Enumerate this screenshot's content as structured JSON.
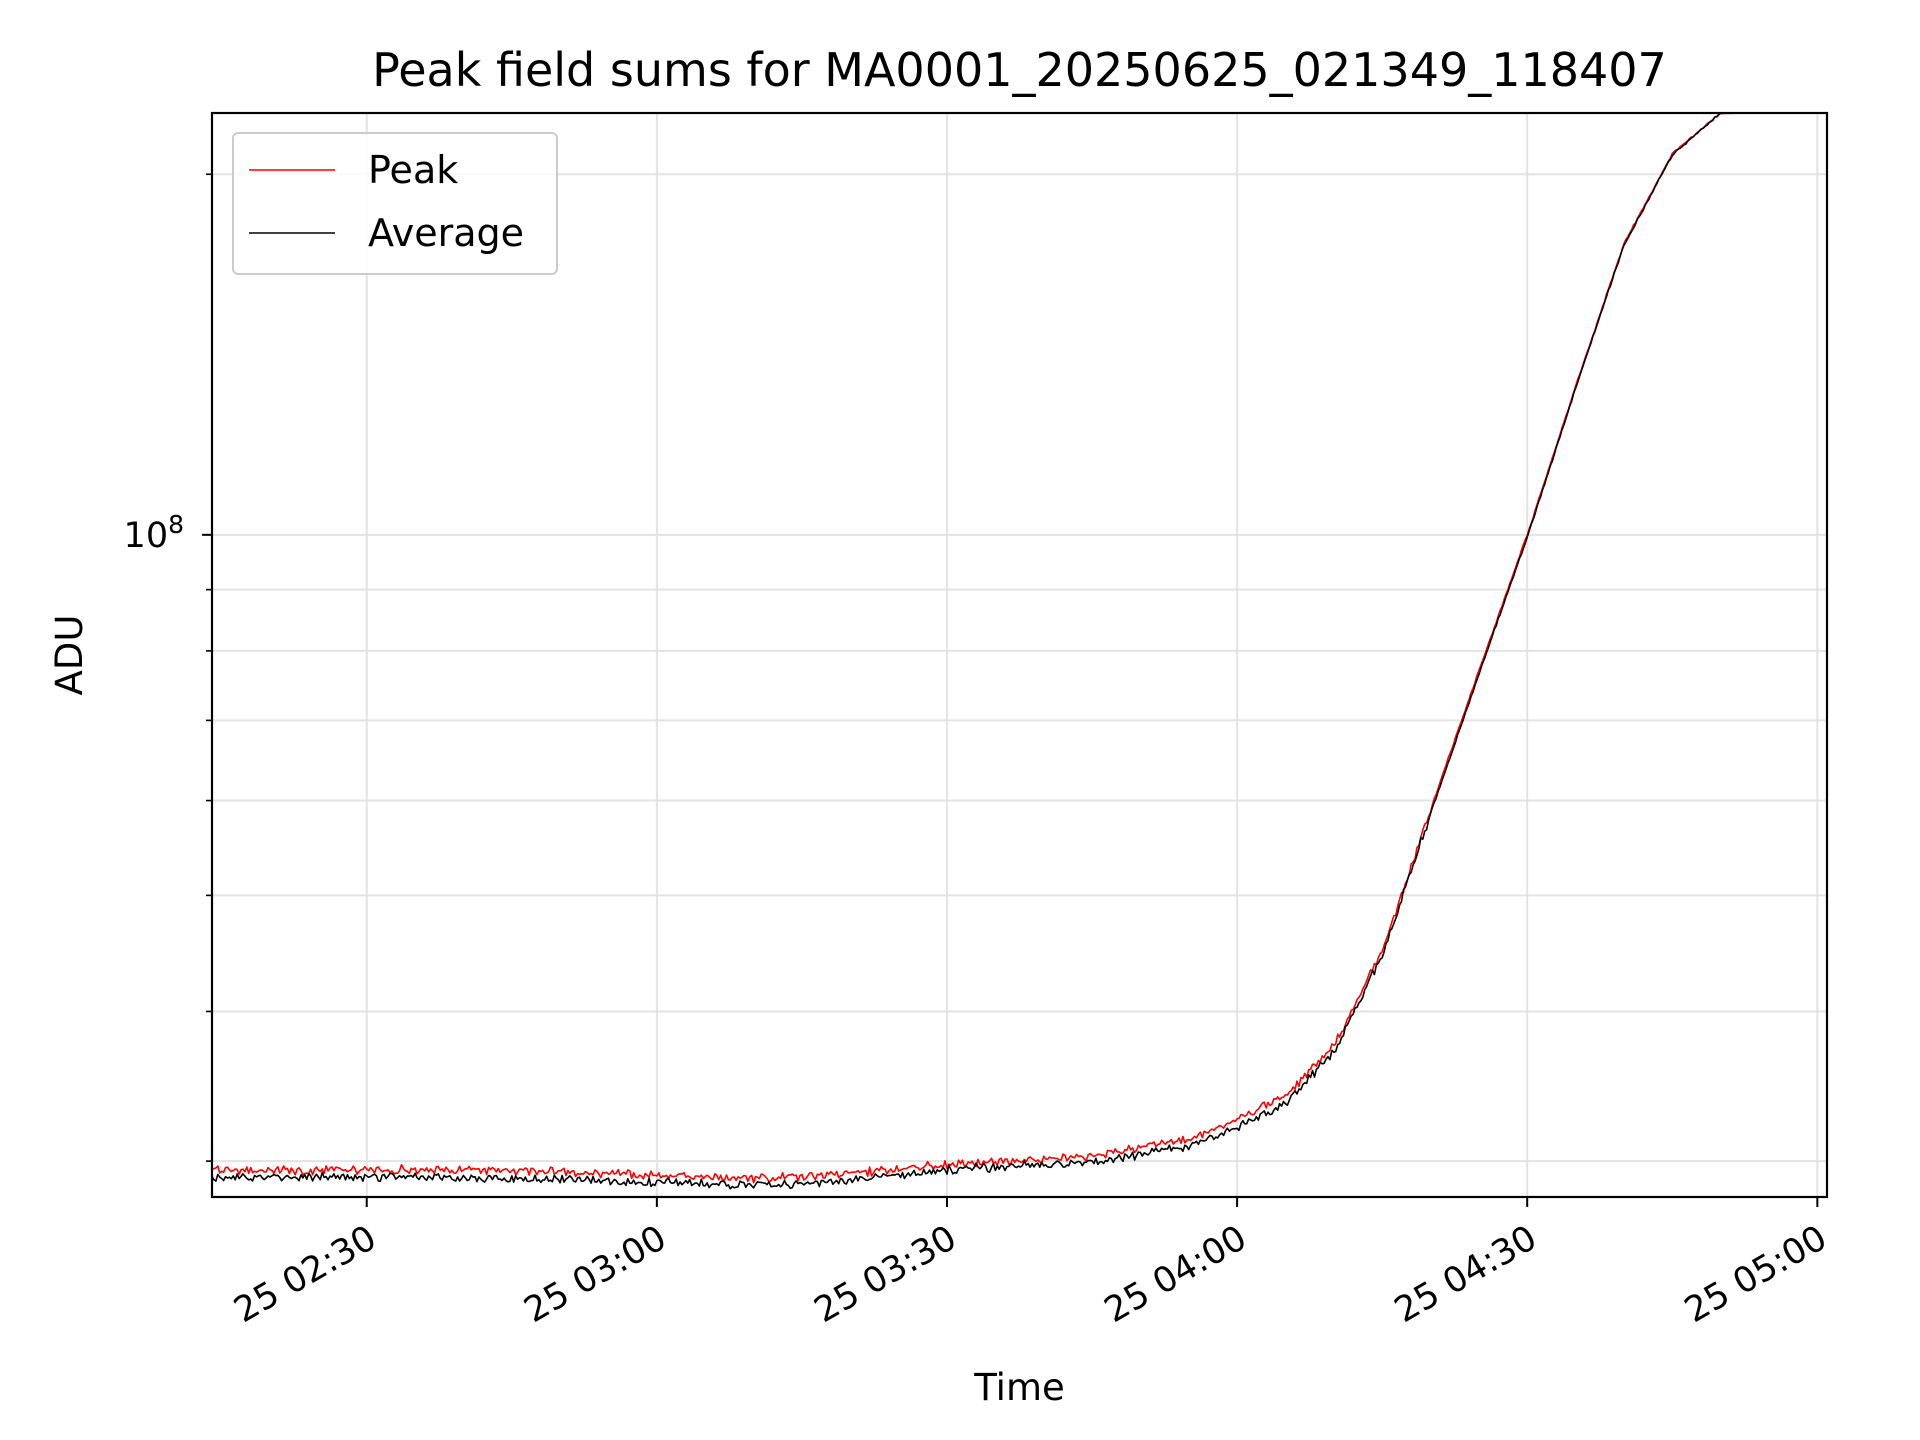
{
  "chart_data": {
    "type": "line",
    "title": "Peak field sums for MA0001_20250625_021349_118407",
    "xlabel": "Time",
    "ylabel": "ADU",
    "y_scale": "log",
    "y_tick_labels": [
      {
        "value": 100000000,
        "base": "10",
        "exp": "8"
      }
    ],
    "x_tick_labels": [
      "25 02:30",
      "25 03:00",
      "25 03:30",
      "25 04:00",
      "25 04:30",
      "25 05:00"
    ],
    "x_ticks": [
      "2025-06-25 02:30",
      "2025-06-25 03:00",
      "2025-06-25 03:30",
      "2025-06-25 04:00",
      "2025-06-25 04:30",
      "2025-06-25 05:00"
    ],
    "xlim": [
      "2025-06-25 02:14",
      "2025-06-25 05:01"
    ],
    "ylim": [
      28000000,
      225000000
    ],
    "grid": true,
    "legend_position": "upper left",
    "series": [
      {
        "name": "Peak",
        "color": "#ff0000",
        "x": [
          "2025-06-25 02:14",
          "2025-06-25 02:30",
          "2025-06-25 02:45",
          "2025-06-25 03:00",
          "2025-06-25 03:10",
          "2025-06-25 03:20",
          "2025-06-25 03:30",
          "2025-06-25 03:45",
          "2025-06-25 03:50",
          "2025-06-25 03:55",
          "2025-06-25 04:00",
          "2025-06-25 04:05",
          "2025-06-25 04:10",
          "2025-06-25 04:15",
          "2025-06-25 04:20",
          "2025-06-25 04:25",
          "2025-06-25 04:30",
          "2025-06-25 04:35",
          "2025-06-25 04:40",
          "2025-06-25 04:45",
          "2025-06-25 04:50"
        ],
        "values": [
          29500000,
          29500000,
          29500000,
          29200000,
          29000000,
          29300000,
          29800000,
          30300000,
          30800000,
          31300000,
          32500000,
          34000000,
          37500000,
          45000000,
          59000000,
          77000000,
          100000000,
          133000000,
          175000000,
          208000000,
          225000000
        ]
      },
      {
        "name": "Average",
        "color": "#000000",
        "x": [
          "2025-06-25 02:14",
          "2025-06-25 02:30",
          "2025-06-25 02:45",
          "2025-06-25 03:00",
          "2025-06-25 03:10",
          "2025-06-25 03:20",
          "2025-06-25 03:30",
          "2025-06-25 03:45",
          "2025-06-25 03:50",
          "2025-06-25 03:55",
          "2025-06-25 04:00",
          "2025-06-25 04:05",
          "2025-06-25 04:10",
          "2025-06-25 04:15",
          "2025-06-25 04:20",
          "2025-06-25 04:25",
          "2025-06-25 04:30",
          "2025-06-25 04:35",
          "2025-06-25 04:40",
          "2025-06-25 04:45",
          "2025-06-25 04:50"
        ],
        "values": [
          29100000,
          29100000,
          29000000,
          28800000,
          28600000,
          28900000,
          29500000,
          29900000,
          30400000,
          30900000,
          32000000,
          33500000,
          37000000,
          44500000,
          58500000,
          76500000,
          99500000,
          132500000,
          174500000,
          207500000,
          225000000
        ]
      }
    ]
  }
}
